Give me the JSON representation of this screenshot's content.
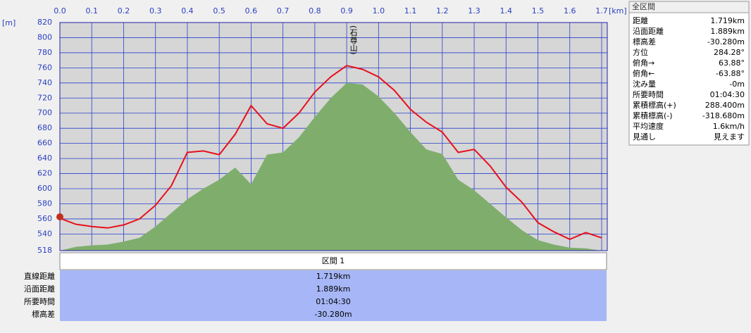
{
  "chart_data": {
    "type": "area-line",
    "xlabel": "[km]",
    "ylabel": "[m]",
    "x": [
      0,
      0.05,
      0.1,
      0.15,
      0.2,
      0.25,
      0.3,
      0.35,
      0.4,
      0.45,
      0.5,
      0.55,
      0.6,
      0.65,
      0.7,
      0.75,
      0.8,
      0.85,
      0.9,
      0.95,
      1.0,
      1.05,
      1.1,
      1.15,
      1.2,
      1.25,
      1.3,
      1.35,
      1.4,
      1.45,
      1.5,
      1.55,
      1.6,
      1.65,
      1.7
    ],
    "series": [
      {
        "color": "#7fae6c",
        "fill": true,
        "values": [
          518,
          523,
          525,
          526,
          530,
          535,
          550,
          568,
          586,
          600,
          612,
          628,
          606,
          645,
          648,
          668,
          695,
          720,
          740,
          738,
          722,
          700,
          675,
          652,
          646,
          612,
          598,
          580,
          562,
          545,
          532,
          526,
          522,
          521,
          518
        ]
      },
      {
        "color": "#e8101c",
        "fill": false,
        "values": [
          561,
          553,
          550,
          548,
          552,
          560,
          578,
          604,
          648,
          650,
          645,
          672,
          710,
          686,
          680,
          700,
          728,
          748,
          763,
          758,
          748,
          730,
          705,
          688,
          675,
          648,
          652,
          630,
          602,
          582,
          555,
          543,
          533,
          542,
          535
        ]
      }
    ],
    "annotations": [
      {
        "x": 0.92,
        "text": "(石尊山)"
      }
    ],
    "xlim": [
      0,
      1.7
    ],
    "xticks": [
      {
        "value": 0,
        "label": "0.0"
      },
      0.1,
      0.2,
      0.3,
      0.4,
      0.5,
      0.6,
      0.7,
      0.8,
      0.9,
      {
        "value": 1,
        "label": "1.0"
      },
      1.1,
      1.2,
      1.3,
      1.4,
      1.5,
      1.6,
      1.7
    ],
    "ylim": [
      518,
      820
    ],
    "yticks": [
      518,
      540,
      560,
      580,
      600,
      620,
      640,
      660,
      680,
      700,
      720,
      740,
      760,
      780,
      800,
      820
    ],
    "grid": true
  },
  "summary_panel": {
    "title": "全区間",
    "rows": [
      [
        "距離",
        "1.719km"
      ],
      [
        "沿面距離",
        "1.889km"
      ],
      [
        "標高差",
        "-30.280m"
      ],
      [
        "方位",
        "284.28°"
      ],
      [
        "俯角→",
        "63.88°"
      ],
      [
        "俯角←",
        "-63.88°"
      ],
      [
        "沈み量",
        "-0m"
      ],
      [
        "所要時間",
        "01:04:30"
      ],
      [
        "累積標高(+)",
        "288.400m"
      ],
      [
        "累積標高(-)",
        "-318.680m"
      ],
      [
        "平均速度",
        "1.6km/h"
      ],
      [
        "見通し",
        "見えます"
      ]
    ]
  },
  "section_table": {
    "header": "区間 1",
    "rows": [
      [
        "直線距離",
        "1.719km"
      ],
      [
        "沿面距離",
        "1.889km"
      ],
      [
        "所要時間",
        "01:04:30"
      ],
      [
        "標高差",
        "-30.280m"
      ]
    ]
  }
}
